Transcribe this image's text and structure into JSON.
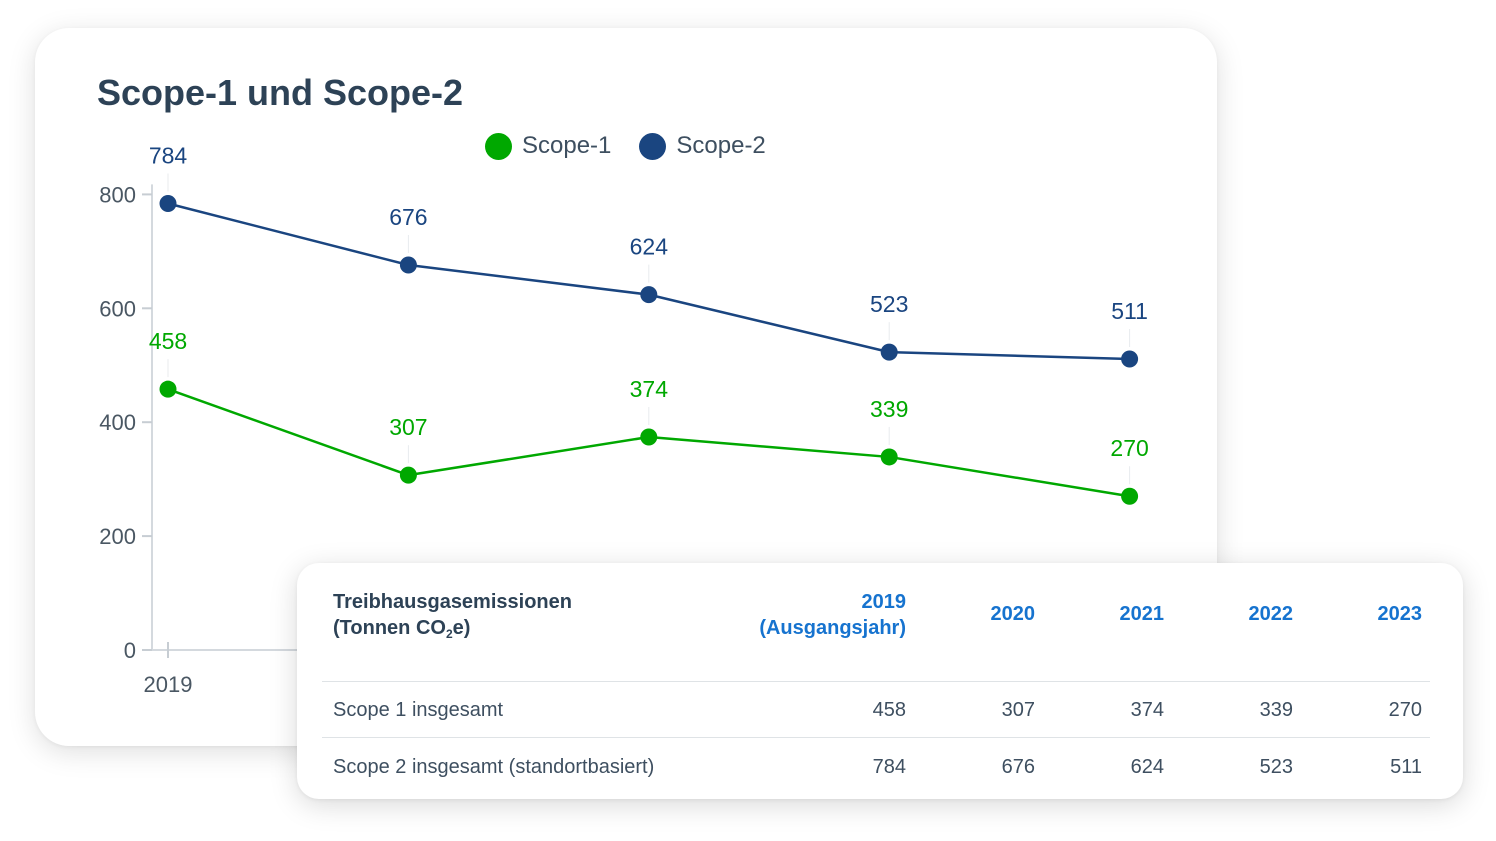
{
  "chart_data": {
    "type": "line",
    "title": "Scope-1 und Scope-2",
    "x": [
      "2019",
      "2020",
      "2021",
      "2022",
      "2023"
    ],
    "visible_x_tick_labels": [
      "2019"
    ],
    "ylim": [
      0,
      800
    ],
    "yticks": [
      0,
      200,
      400,
      600,
      800
    ],
    "grid": false,
    "legend": "top-center",
    "series": [
      {
        "name": "Scope-1",
        "color": "#00a800",
        "values": [
          458,
          307,
          374,
          339,
          270
        ]
      },
      {
        "name": "Scope-2",
        "color": "#1a4580",
        "values": [
          784,
          676,
          624,
          523,
          511
        ]
      }
    ]
  },
  "table": {
    "header": {
      "metric_line1": "Treibhausgasemissionen",
      "metric_line2_prefix": "(Tonnen CO",
      "metric_line2_sub": "2",
      "metric_line2_suffix": "e)",
      "years": [
        {
          "year": "2019",
          "note": "(Ausgangsjahr)"
        },
        {
          "year": "2020"
        },
        {
          "year": "2021"
        },
        {
          "year": "2022"
        },
        {
          "year": "2023"
        }
      ]
    },
    "rows": [
      {
        "label": "Scope 1 insgesamt",
        "values": [
          "458",
          "307",
          "374",
          "339",
          "270"
        ]
      },
      {
        "label": "Scope 2 insgesamt (standortbasiert)",
        "values": [
          "784",
          "676",
          "624",
          "523",
          "511"
        ]
      }
    ]
  }
}
